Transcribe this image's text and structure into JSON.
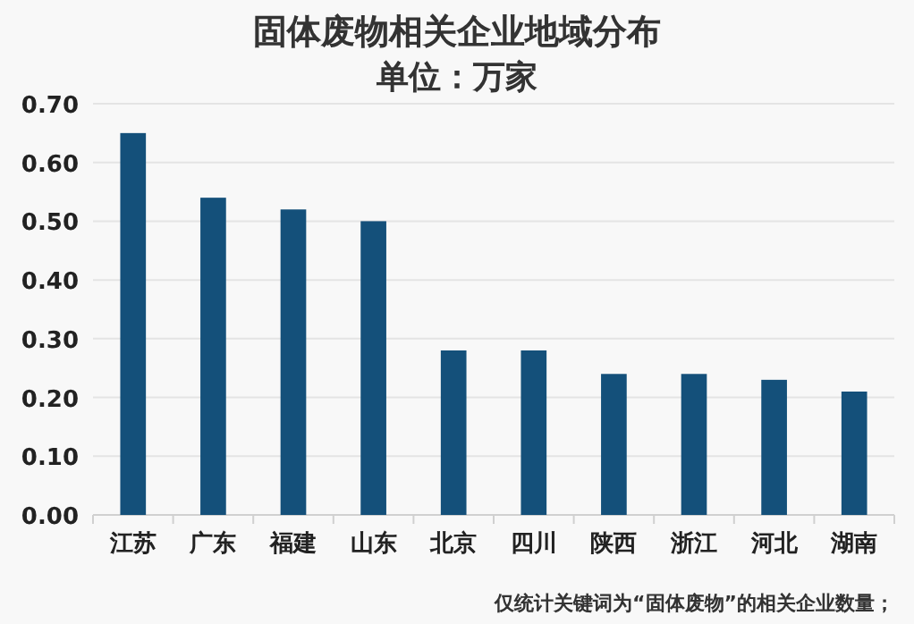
{
  "chart_data": {
    "type": "bar",
    "title": "固体废物相关企业地域分布",
    "subtitle": "单位：万家",
    "categories": [
      "江苏",
      "广东",
      "福建",
      "山东",
      "北京",
      "四川",
      "陕西",
      "浙江",
      "河北",
      "湖南"
    ],
    "values": [
      0.65,
      0.54,
      0.52,
      0.5,
      0.28,
      0.28,
      0.24,
      0.24,
      0.23,
      0.21
    ],
    "color": "#14507a",
    "ylim": [
      0,
      0.7
    ],
    "yticks": [
      {
        "value": 0,
        "label": "0.00"
      },
      {
        "value": 0.1,
        "label": "0.10"
      },
      {
        "value": 0.2,
        "label": "0.20"
      },
      {
        "value": 0.3,
        "label": "0.30"
      },
      {
        "value": 0.4,
        "label": "0.40"
      },
      {
        "value": 0.5,
        "label": "0.50"
      },
      {
        "value": 0.6,
        "label": "0.60"
      },
      {
        "value": 0.7,
        "label": "0.70"
      }
    ],
    "grid": "y",
    "annotations": [
      "仅统计关键词为“固体废物”的相关企业数量；"
    ]
  }
}
